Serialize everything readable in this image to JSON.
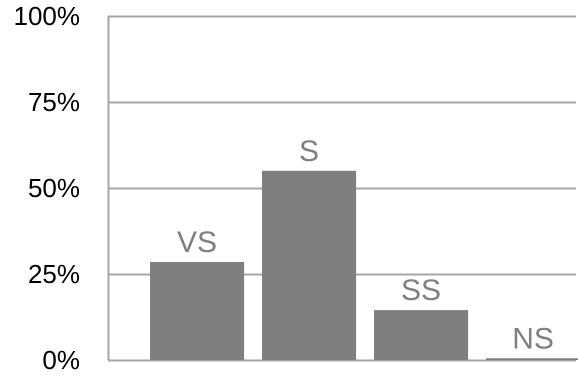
{
  "chart_data": {
    "type": "bar",
    "categories": [
      "VS",
      "S",
      "SS",
      "NS"
    ],
    "values": [
      28.5,
      55,
      14.5,
      0.5
    ],
    "ylim": [
      0,
      100
    ],
    "yticks": [
      0,
      25,
      50,
      75,
      100
    ],
    "ytick_labels": [
      "0%",
      "25%",
      "50%",
      "75%",
      "100%"
    ],
    "grid": true,
    "legend": "none",
    "title": "",
    "xlabel": "",
    "ylabel": "",
    "colors": {
      "bar": "#7f7f7f",
      "bar_label": "#808080",
      "grid": "#a6a6a6",
      "axis": "#a6a6a6"
    }
  }
}
